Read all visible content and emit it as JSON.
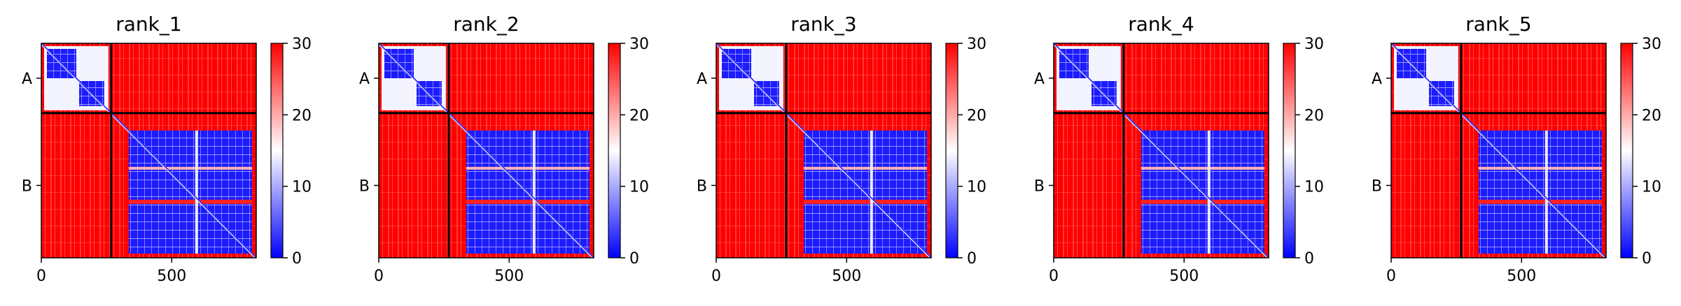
{
  "chart_data": [
    {
      "type": "heatmap",
      "title": "rank_1",
      "x_ticks": [
        0,
        500
      ],
      "y_tick_labels": [
        "A",
        "B"
      ],
      "x_range": [
        0,
        824
      ],
      "chain_break": 268,
      "colorbar": {
        "ticks": [
          0,
          10,
          20,
          30
        ],
        "range": [
          0,
          30
        ],
        "colormap": "bwr"
      },
      "colors": {
        "low": "#0000ff",
        "mid": "#ffffff",
        "high": "#ff0000"
      }
    },
    {
      "type": "heatmap",
      "title": "rank_2",
      "x_ticks": [
        0,
        500
      ],
      "y_tick_labels": [
        "A",
        "B"
      ],
      "x_range": [
        0,
        824
      ],
      "chain_break": 268,
      "colorbar": {
        "ticks": [
          0,
          10,
          20,
          30
        ],
        "range": [
          0,
          30
        ],
        "colormap": "bwr"
      },
      "colors": {
        "low": "#0000ff",
        "mid": "#ffffff",
        "high": "#ff0000"
      }
    },
    {
      "type": "heatmap",
      "title": "rank_3",
      "x_ticks": [
        0,
        500
      ],
      "y_tick_labels": [
        "A",
        "B"
      ],
      "x_range": [
        0,
        824
      ],
      "chain_break": 268,
      "colorbar": {
        "ticks": [
          0,
          10,
          20,
          30
        ],
        "range": [
          0,
          30
        ],
        "colormap": "bwr"
      },
      "colors": {
        "low": "#0000ff",
        "mid": "#ffffff",
        "high": "#ff0000"
      }
    },
    {
      "type": "heatmap",
      "title": "rank_4",
      "x_ticks": [
        0,
        500
      ],
      "y_tick_labels": [
        "A",
        "B"
      ],
      "x_range": [
        0,
        824
      ],
      "chain_break": 268,
      "colorbar": {
        "ticks": [
          0,
          10,
          20,
          30
        ],
        "range": [
          0,
          30
        ],
        "colormap": "bwr"
      },
      "colors": {
        "low": "#0000ff",
        "mid": "#ffffff",
        "high": "#ff0000"
      }
    },
    {
      "type": "heatmap",
      "title": "rank_5",
      "x_ticks": [
        0,
        500
      ],
      "y_tick_labels": [
        "A",
        "B"
      ],
      "x_range": [
        0,
        824
      ],
      "chain_break": 268,
      "colorbar": {
        "ticks": [
          0,
          10,
          20,
          30
        ],
        "range": [
          0,
          30
        ],
        "colormap": "bwr"
      },
      "colors": {
        "low": "#0000ff",
        "mid": "#ffffff",
        "high": "#ff0000"
      }
    }
  ]
}
